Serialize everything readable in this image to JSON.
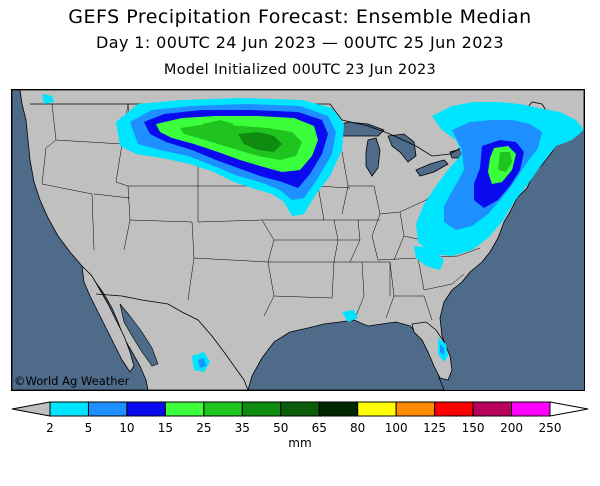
{
  "title": "GEFS Precipitation Forecast: Ensemble Median",
  "subtitle": "Day 1: 00UTC 24 Jun 2023 — 00UTC 25 Jun 2023",
  "init_line": "Model Initialized 00UTC 23 Jun 2023",
  "credit": "©World Ag Weather",
  "colors": {
    "ocean": "#4f6b8a",
    "land": "#c0c0c0",
    "border": "#000000"
  },
  "legend": {
    "units": "mm",
    "ticks": [
      "2",
      "5",
      "10",
      "15",
      "25",
      "35",
      "50",
      "65",
      "80",
      "100",
      "125",
      "150",
      "200",
      "250"
    ],
    "colors": [
      "#00e5ff",
      "#1e8fff",
      "#0a0aef",
      "#3cff3c",
      "#1fc41f",
      "#0f8c0f",
      "#0a5c0a",
      "#002800",
      "#ffff00",
      "#ff8c00",
      "#ff0000",
      "#b8005c",
      "#ff00ff",
      "#9b59d0"
    ],
    "under_color": "#c0c0c0",
    "over_color": "#ffffff"
  }
}
